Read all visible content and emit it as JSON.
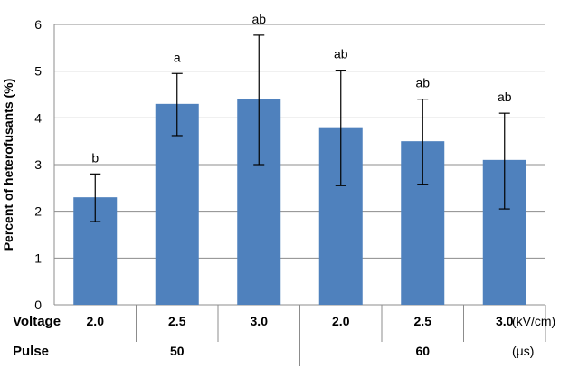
{
  "chart_data": {
    "type": "bar",
    "title": "",
    "ylabel": "Percent of heterofusants (%)",
    "ylim": [
      0,
      6
    ],
    "yticks": [
      0,
      1,
      2,
      3,
      4,
      5,
      6
    ],
    "grid": true,
    "legend": "none",
    "bar_color": "#4f81bd",
    "voltage_label": "Voltage",
    "voltage_unit": "(kV/cm)",
    "pulse_label": "Pulse",
    "pulse_unit": "(μs)",
    "categories": [
      "2.0",
      "2.5",
      "3.0",
      "2.0",
      "2.5",
      "3.0"
    ],
    "pulse_groups": [
      {
        "label": "50",
        "count": 3
      },
      {
        "label": "60",
        "count": 3
      }
    ],
    "values": [
      2.3,
      4.3,
      4.4,
      3.8,
      3.5,
      3.1
    ],
    "error_low": [
      1.78,
      3.62,
      3.0,
      2.55,
      2.58,
      2.05
    ],
    "error_high": [
      2.8,
      4.95,
      5.77,
      5.02,
      4.4,
      4.1
    ],
    "significance": [
      "b",
      "a",
      "ab",
      "ab",
      "ab",
      "ab"
    ]
  }
}
